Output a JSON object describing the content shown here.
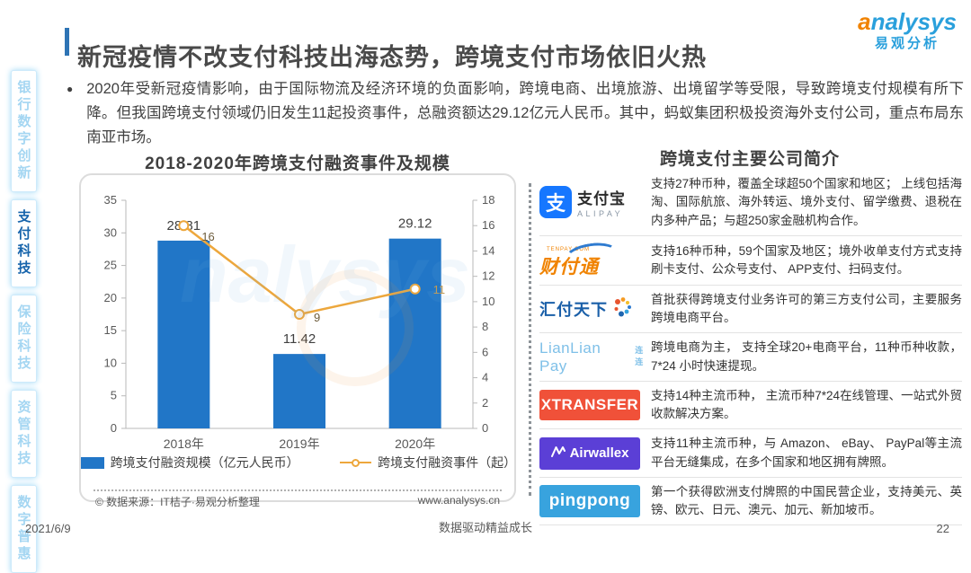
{
  "page": {
    "title": "新冠疫情不改支付科技出海态势，跨境支付市场依旧火热",
    "footer": {
      "date": "2021/6/9",
      "slogan": "数据驱动精益成长",
      "page_number": "22"
    }
  },
  "brand": {
    "first_letter": "a",
    "rest": "nalysys",
    "cn": "易观分析"
  },
  "sidebar": {
    "items": [
      {
        "label": "银行数字创新",
        "active": false
      },
      {
        "label": "支付科技",
        "active": true
      },
      {
        "label": "保险科技",
        "active": false
      },
      {
        "label": "资管科技",
        "active": false
      },
      {
        "label": "数字普惠",
        "active": false
      }
    ]
  },
  "intro": {
    "bullet": "●",
    "text": "2020年受新冠疫情影响，由于国际物流及经济环境的负面影响，跨境电商、出境旅游、出境留学等受限，导致跨境支付规模有所下降。但我国跨境支付领域仍旧发生11起投资事件，总融资额达29.12亿元人民币。其中，蚂蚁集团积极投资海外支付公司，重点布局东南亚市场。"
  },
  "chart_data": {
    "type": "combo-bar-line",
    "title": "2018-2020年跨境支付融资事件及规模",
    "categories": [
      "2018年",
      "2019年",
      "2020年"
    ],
    "series": [
      {
        "name": "跨境支付融资规模（亿元人民币）",
        "type": "bar",
        "axis": "left",
        "color": "#2176C7",
        "values": [
          28.81,
          11.42,
          29.12
        ]
      },
      {
        "name": "跨境支付融资事件（起）",
        "type": "line",
        "axis": "right",
        "color": "#EDA73C",
        "values": [
          16,
          9,
          11
        ]
      }
    ],
    "left_axis": {
      "min": 0,
      "max": 35,
      "step": 5
    },
    "right_axis": {
      "min": 0,
      "max": 18,
      "step": 2
    },
    "grid": false,
    "legend_position": "bottom",
    "source": "© 数据来源：IT桔子·易观分析整理",
    "website": "www.analysys.cn"
  },
  "companies": {
    "title": "跨境支付主要公司简介",
    "rows": [
      {
        "logo": "alipay",
        "glyph": "支",
        "cn": "支付宝",
        "en": "ALIPAY",
        "desc": "支持27种币种，覆盖全球超50个国家和地区； 上线包括海淘、国际航旅、海外转运、境外支付、留学缴费、退税在内多种产品；与超250家金融机构合作。"
      },
      {
        "logo": "tenpay",
        "top": "TENPAY.COM",
        "cn": "财付通",
        "desc": "支持16种币种，59个国家及地区；境外收单支付方式支持刷卡支付、公众号支付、 APP支付、扫码支付。"
      },
      {
        "logo": "huifu",
        "cn": "汇付天下",
        "desc": "首批获得跨境支付业务许可的第三方支付公司，主要服务跨境电商平台。"
      },
      {
        "logo": "lianlian",
        "en": "LianLian Pay",
        "cn": "连连",
        "desc": "跨境电商为主， 支持全球20+电商平台，11种币种收款，7*24 小时快速提现。"
      },
      {
        "logo": "xtransfer",
        "en": "XTRANSFER",
        "desc": "支持14种主流币种， 主流币种7*24在线管理、一站式外贸收款解决方案。"
      },
      {
        "logo": "airwallex",
        "en": "Airwallex",
        "desc": "支持11种主流币种，与 Amazon、 eBay、 PayPal等主流平台无缝集成，在多个国家和地区拥有牌照。"
      },
      {
        "logo": "pingpong",
        "en": "pingpong",
        "desc": "第一个获得欧洲支付牌照的中国民营企业，支持美元、英镑、欧元、日元、澳元、加元、新加坡币。"
      }
    ]
  }
}
